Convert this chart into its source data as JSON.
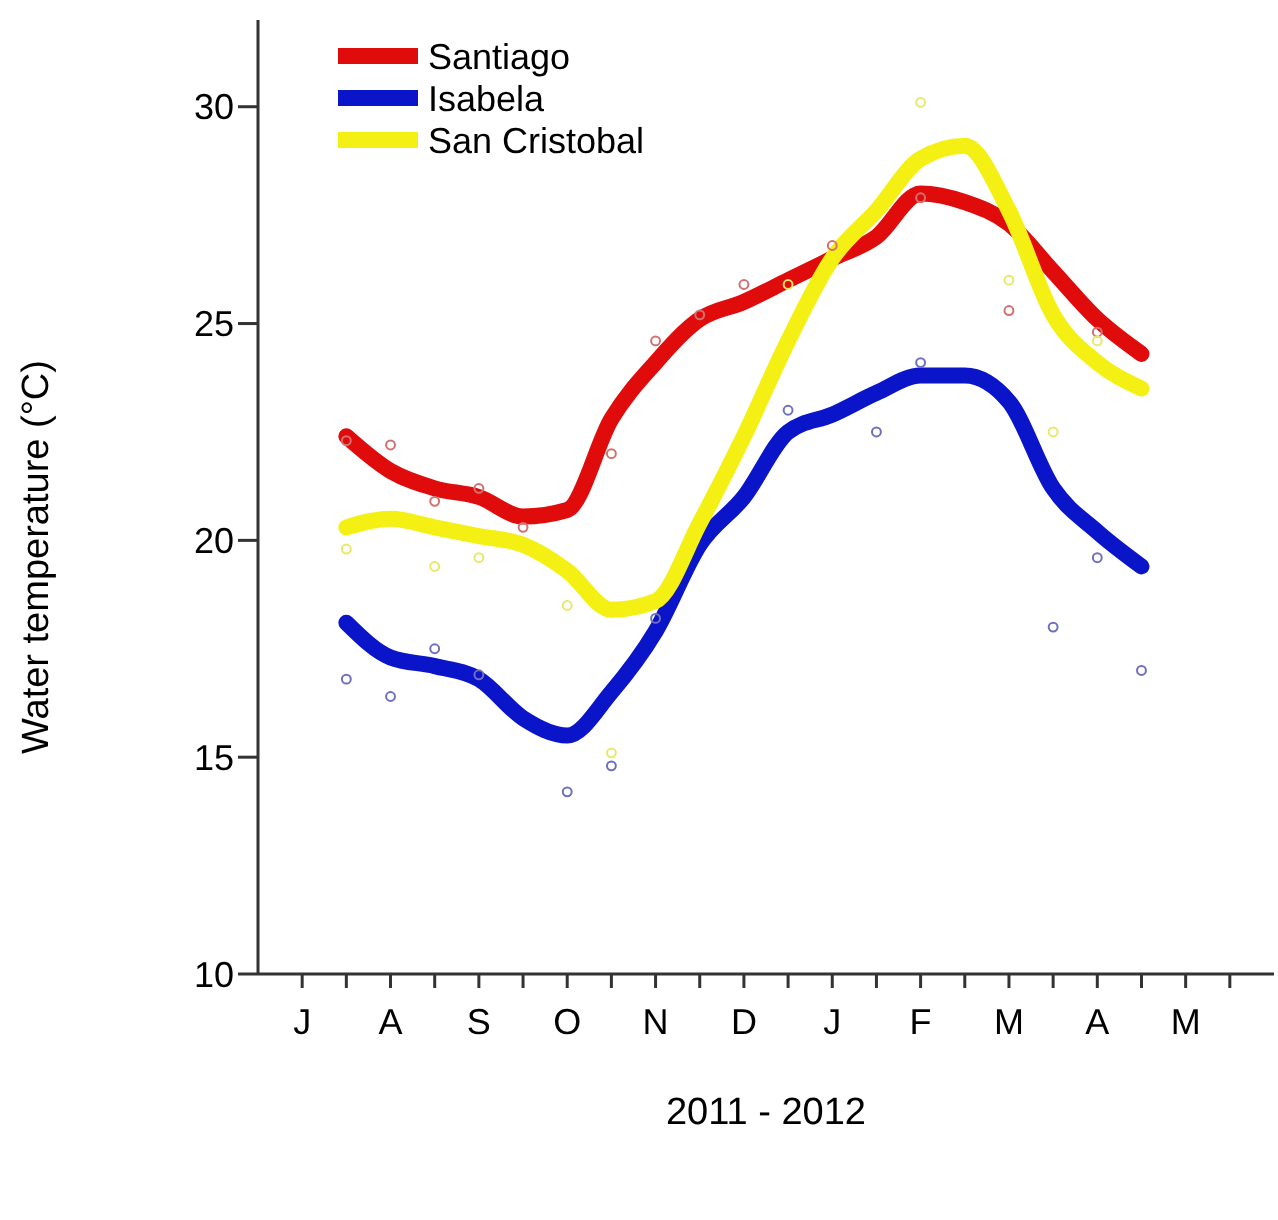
{
  "chart_data": {
    "type": "line",
    "xlabel": "2011 - 2012",
    "ylabel": "Water temperature (°C)",
    "categories": [
      "J",
      null,
      "A",
      null,
      "S",
      null,
      "O",
      null,
      "N",
      null,
      "D",
      null,
      "J",
      null,
      "F",
      null,
      "M",
      null,
      "A",
      null,
      "M",
      null
    ],
    "ylim": [
      10,
      32
    ],
    "yticks": [
      10,
      15,
      20,
      25,
      30
    ],
    "grid": false,
    "legend": "top left",
    "line_style": "solid",
    "series": [
      {
        "type": "scatter",
        "marker": "circle",
        "color": "#d47070",
        "values": [
          null,
          22.3,
          22.2,
          20.9,
          21.2,
          20.3,
          null,
          22.0,
          24.6,
          25.2,
          25.9,
          null,
          26.8,
          null,
          27.9,
          null,
          25.3,
          null,
          24.8,
          null,
          null,
          null
        ]
      },
      {
        "type": "scatter",
        "marker": "circle",
        "color": "#6f6fc0",
        "values": [
          null,
          16.8,
          16.4,
          17.5,
          16.9,
          null,
          14.2,
          14.8,
          18.2,
          null,
          null,
          23.0,
          null,
          22.5,
          24.1,
          null,
          null,
          18.0,
          19.6,
          17.0,
          null,
          null
        ]
      },
      {
        "type": "scatter",
        "marker": "circle",
        "color": "#e8e86a",
        "values": [
          null,
          19.8,
          null,
          19.4,
          19.6,
          null,
          18.5,
          15.1,
          null,
          null,
          null,
          25.9,
          null,
          null,
          30.1,
          null,
          26.0,
          22.5,
          24.6,
          null,
          null,
          null
        ]
      },
      {
        "name": "Santiago",
        "color": "#e00c0c",
        "values": [
          null,
          22.4,
          21.6,
          21.2,
          21.0,
          20.55,
          20.7,
          22.8,
          24.1,
          25.1,
          25.5,
          26.0,
          26.5,
          27.0,
          28.0,
          27.8,
          27.3,
          26.2,
          25.1,
          24.3,
          null,
          null
        ]
      },
      {
        "name": "Isabela",
        "color": "#0a14c8",
        "values": [
          null,
          18.1,
          17.3,
          17.1,
          16.8,
          15.9,
          15.5,
          16.5,
          17.9,
          19.9,
          21.0,
          22.5,
          22.9,
          23.4,
          23.8,
          23.8,
          23.2,
          21.2,
          20.2,
          19.4,
          null,
          null
        ]
      },
      {
        "name": "San Cristobal",
        "color": "#f5f014",
        "values": [
          null,
          20.3,
          20.5,
          20.3,
          20.1,
          19.9,
          19.3,
          18.4,
          18.6,
          20.4,
          22.4,
          24.6,
          26.5,
          27.6,
          28.8,
          29.1,
          27.6,
          25.2,
          24.1,
          23.5,
          null,
          null
        ]
      }
    ]
  }
}
